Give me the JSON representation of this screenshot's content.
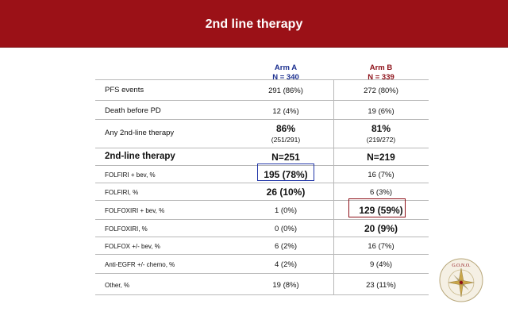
{
  "slide": {
    "title": "2nd line therapy"
  },
  "columns": {
    "arm_a": {
      "label": "Arm A",
      "n": "N = 340",
      "color": "#1b2f8f"
    },
    "arm_b": {
      "label": "Arm B",
      "n": "N = 339",
      "color": "#8d1018"
    }
  },
  "rows": [
    {
      "label": "PFS events",
      "a": "291 (86%)",
      "b": "272 (80%)"
    },
    {
      "label": "Death before PD",
      "a": "12 (4%)",
      "b": "19 (6%)"
    },
    {
      "label": "Any 2nd-line therapy",
      "a": "86%",
      "a_sub": "(251/291)",
      "b": "81%",
      "b_sub": "(219/272)"
    },
    {
      "label": "2nd-line therapy",
      "a": "N=251",
      "b": "N=219"
    },
    {
      "label": "FOLFIRI + bev, %",
      "a": "195 (78%)",
      "b": "16 (7%)"
    },
    {
      "label": "FOLFIRI, %",
      "a": "26 (10%)",
      "b": "6 (3%)"
    },
    {
      "label": "FOLFOXIRI + bev, %",
      "a": "1 (0%)",
      "b": "129 (59%)"
    },
    {
      "label": "FOLFOXIRI, %",
      "a": "0 (0%)",
      "b": "20 (9%)"
    },
    {
      "label": "FOLFOX +/- bev, %",
      "a": "6 (2%)",
      "b": "16 (7%)"
    },
    {
      "label": "Anti-EGFR +/- chemo, %",
      "a": "4 (2%)",
      "b": "9 (4%)"
    },
    {
      "label": "Other, %",
      "a": "19 (8%)",
      "b": "23 (11%)"
    }
  ],
  "logo": {
    "text": "G.O.N.O."
  },
  "colors": {
    "header": "#9b1117",
    "highlight_a": "#2237a8",
    "highlight_b": "#8d1018"
  }
}
